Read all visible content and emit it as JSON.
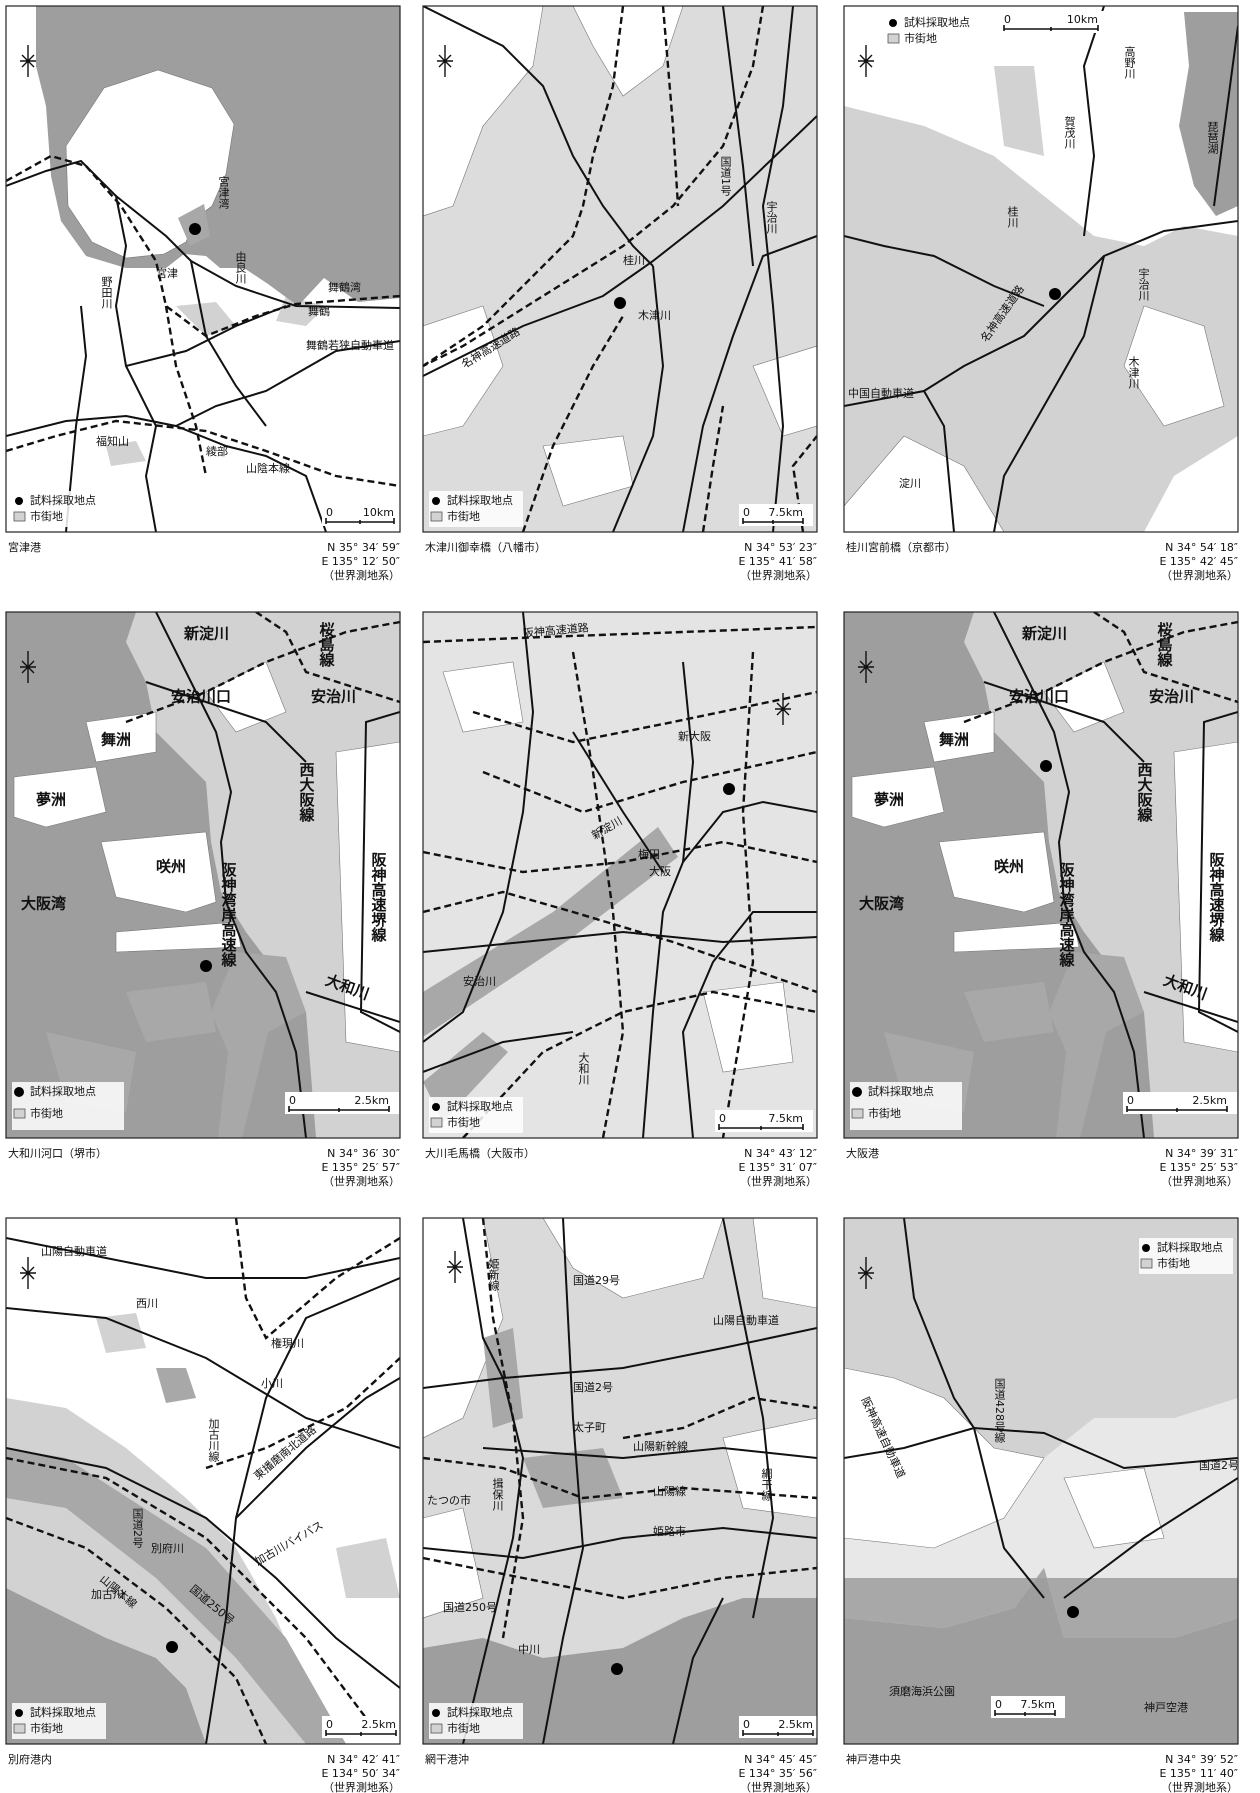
{
  "panels": [
    {
      "caption": "宮津港",
      "lat": "N 35° 34′ 59″",
      "lon": "E 135° 12′ 50″",
      "datum": "（世界測地系）",
      "legend": [
        "試料採取地点",
        "市街地"
      ],
      "scale": [
        "0",
        "10km"
      ],
      "labels": [
        "宮津湾",
        "由良川",
        "宮津",
        "野田川",
        "舞鶴湾",
        "舞鶴",
        "舞鶴若狭自動車道",
        "福知山",
        "綾部",
        "山陰本線"
      ]
    },
    {
      "caption": "木津川御幸橋（八幡市）",
      "lat": "N 34° 53′ 23″",
      "lon": "E 135° 41′ 58″",
      "datum": "（世界測地系）",
      "legend": [
        "試料採取地点",
        "市街地"
      ],
      "scale": [
        "0",
        "7.5km"
      ],
      "labels": [
        "国道1号",
        "宇治川",
        "桂川",
        "木津川",
        "名神高速道路"
      ]
    },
    {
      "caption": "桂川宮前橋（京都市）",
      "lat": "N 34° 54′ 18″",
      "lon": "E 135° 42′ 45″",
      "datum": "（世界測地系）",
      "legend": [
        "試料採取地点",
        "市街地"
      ],
      "scale": [
        "0",
        "10km"
      ],
      "labels": [
        "琵琶湖",
        "高野川",
        "賀茂川",
        "桂川",
        "名神高速道路",
        "宇治川",
        "木津川",
        "中国自動車道",
        "淀川"
      ]
    },
    {
      "caption": "大和川河口（堺市）",
      "lat": "N 34° 36′ 30″",
      "lon": "E 135° 25′ 57″",
      "datum": "（世界測地系）",
      "legend": [
        "試料採取地点",
        "市街地"
      ],
      "scale": [
        "0",
        "2.5km"
      ],
      "labels": [
        "新淀川",
        "桜島線",
        "安治川口",
        "安治川",
        "舞洲",
        "夢洲",
        "咲州",
        "西大阪線",
        "大阪湾",
        "阪神湾岸高速線",
        "阪神高速堺線",
        "大和川"
      ]
    },
    {
      "caption": "大川毛馬橋（大阪市）",
      "lat": "N 34° 43′ 12″",
      "lon": "E 135° 31′ 07″",
      "datum": "（世界測地系）",
      "legend": [
        "試料採取地点",
        "市街地"
      ],
      "scale": [
        "0",
        "7.5km"
      ],
      "labels": [
        "阪神高速道路",
        "新大阪",
        "梅田",
        "大阪",
        "新淀川",
        "安治川",
        "大和川"
      ]
    },
    {
      "caption": "大阪港",
      "lat": "N 34° 39′ 31″",
      "lon": "E 135° 25′ 53″",
      "datum": "（世界測地系）",
      "legend": [
        "試料採取地点",
        "市街地"
      ],
      "scale": [
        "0",
        "2.5km"
      ],
      "labels": [
        "新淀川",
        "桜島線",
        "安治川口",
        "安治川",
        "舞洲",
        "夢洲",
        "咲州",
        "西大阪線",
        "大阪湾",
        "阪神湾岸高速線",
        "阪神高速堺線",
        "大和川"
      ]
    },
    {
      "caption": "別府港内",
      "lat": "N 34° 42′ 41″",
      "lon": "E 134° 50′ 34″",
      "datum": "（世界測地系）",
      "legend": [
        "試料採取地点",
        "市街地"
      ],
      "scale": [
        "0",
        "2.5km"
      ],
      "labels": [
        "山陽自動車道",
        "西川",
        "権現川",
        "小川",
        "加古川線",
        "東播磨南北道路",
        "国道2号",
        "別府川",
        "加古川",
        "山陽本線",
        "国道250号",
        "加古川バイパス"
      ]
    },
    {
      "caption": "網干港沖",
      "lat": "N 34° 45′ 45″",
      "lon": "E 134° 35′ 56″",
      "datum": "（世界測地系）",
      "legend": [
        "試料採取地点",
        "市街地"
      ],
      "scale": [
        "0",
        "2.5km"
      ],
      "labels": [
        "姫新線",
        "国道29号",
        "山陽自動車道",
        "国道2号",
        "太子町",
        "山陽新幹線",
        "揖保川",
        "たつの市",
        "山陽線",
        "網干線",
        "姫路市",
        "国道250号",
        "中川"
      ]
    },
    {
      "caption": "神戸港中央",
      "lat": "N 34° 39′ 52″",
      "lon": "E 135° 11′ 40″",
      "datum": "（世界測地系）",
      "legend": [
        "試料採取地点",
        "市街地"
      ],
      "scale": [
        "0",
        "7.5km"
      ],
      "labels": [
        "阪神高速自動車道",
        "国道428号線",
        "国道2号",
        "須磨海浜公園",
        "神戸空港"
      ]
    }
  ]
}
